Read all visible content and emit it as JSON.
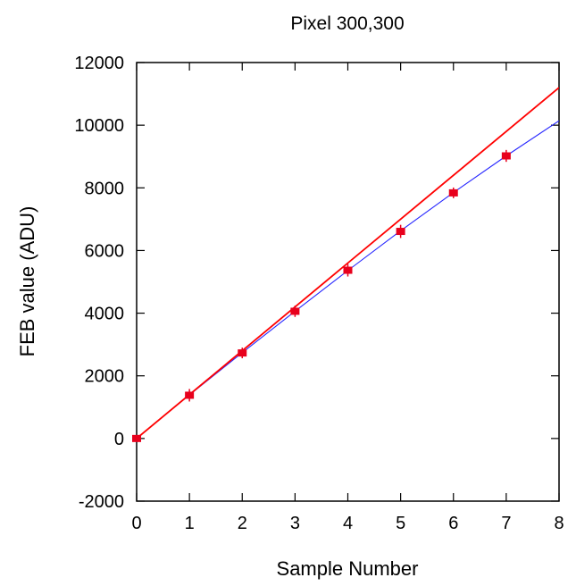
{
  "chart_data": {
    "type": "scatter",
    "title": "Pixel 300,300",
    "xlabel": "Sample Number",
    "ylabel": "FEB value (ADU)",
    "xlim": [
      0,
      8
    ],
    "ylim": [
      -2000,
      12000
    ],
    "xticks": [
      0,
      1,
      2,
      3,
      4,
      5,
      6,
      7,
      8
    ],
    "yticks": [
      -2000,
      0,
      2000,
      4000,
      6000,
      8000,
      10000,
      12000
    ],
    "grid": false,
    "series": [
      {
        "type": "scatter",
        "color": "#e8001c",
        "x": [
          0,
          1,
          2,
          3,
          4,
          5,
          6,
          7
        ],
        "y": [
          0,
          1380,
          2730,
          4060,
          5370,
          6610,
          7840,
          9020
        ],
        "yerr": [
          60,
          200,
          170,
          180,
          200,
          210,
          170,
          190
        ]
      },
      {
        "type": "line",
        "color": "#2626ff",
        "x": [
          0,
          1,
          2,
          3,
          4,
          5,
          6,
          7,
          8
        ],
        "y": [
          0,
          1390,
          2740,
          4060,
          5360,
          6630,
          7850,
          9020,
          10140
        ]
      },
      {
        "type": "line",
        "color": "#ff0000",
        "x": [
          0,
          8
        ],
        "y": [
          0,
          11200
        ]
      }
    ]
  }
}
